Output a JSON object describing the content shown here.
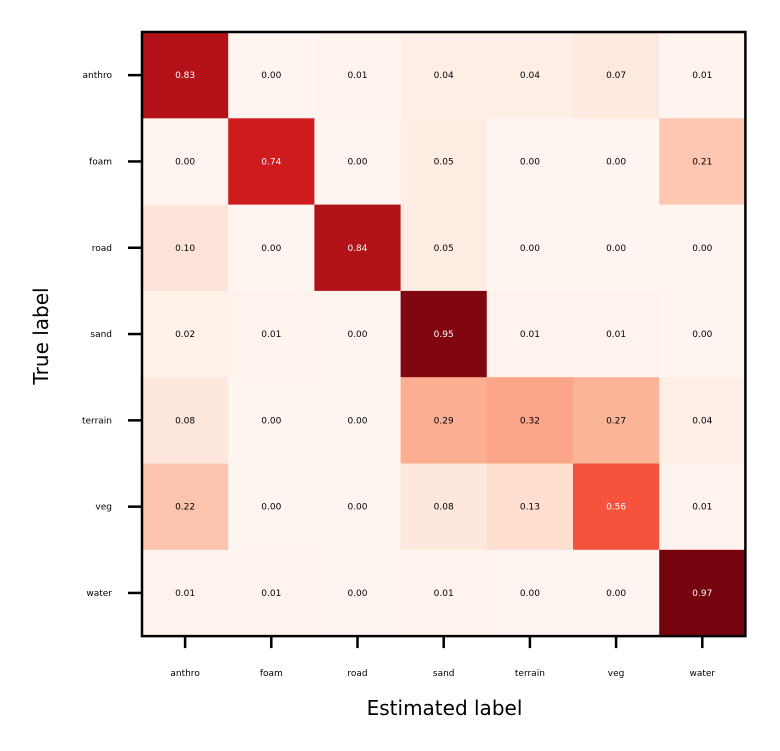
{
  "chart_data": {
    "type": "heatmap",
    "title": "",
    "xlabel": "Estimated label",
    "ylabel": "True label",
    "x_categories": [
      "anthro",
      "foam",
      "road",
      "sand",
      "terrain",
      "veg",
      "water"
    ],
    "y_categories": [
      "anthro",
      "foam",
      "road",
      "sand",
      "terrain",
      "veg",
      "water"
    ],
    "values": [
      [
        0.83,
        0.0,
        0.01,
        0.04,
        0.04,
        0.07,
        0.01
      ],
      [
        0.0,
        0.74,
        0.0,
        0.05,
        0.0,
        0.0,
        0.21
      ],
      [
        0.1,
        0.0,
        0.84,
        0.05,
        0.0,
        0.0,
        0.0
      ],
      [
        0.02,
        0.01,
        0.0,
        0.95,
        0.01,
        0.01,
        0.0
      ],
      [
        0.08,
        0.0,
        0.0,
        0.29,
        0.32,
        0.27,
        0.04
      ],
      [
        0.22,
        0.0,
        0.0,
        0.08,
        0.13,
        0.56,
        0.01
      ],
      [
        0.01,
        0.01,
        0.0,
        0.01,
        0.0,
        0.0,
        0.97
      ]
    ],
    "colormap": "Reds",
    "value_range": [
      0,
      1
    ]
  }
}
